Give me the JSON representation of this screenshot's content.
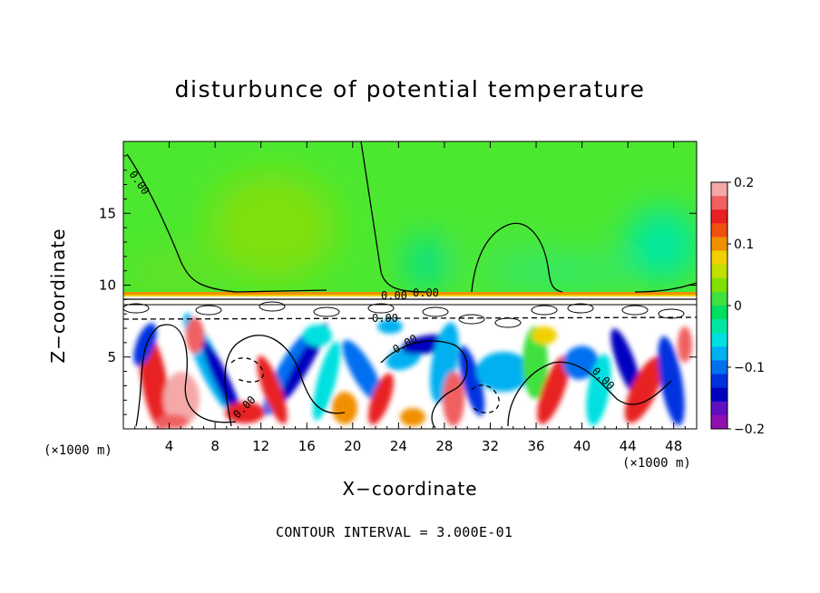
{
  "chart_data": {
    "type": "heatmap",
    "title": "disturbunce of potential temperature",
    "xlabel": "X−coordinate",
    "ylabel": "Z−coordinate",
    "x_unit_label": "(×1000 m)",
    "z_unit_label": "(×1000 m)",
    "xlim": [
      0,
      50
    ],
    "ylim": [
      0,
      20
    ],
    "x_ticks": [
      4,
      8,
      12,
      16,
      20,
      24,
      28,
      32,
      36,
      40,
      44,
      48
    ],
    "y_ticks": [
      5,
      10,
      15
    ],
    "colorbar": {
      "range": [
        -0.2,
        0.2
      ],
      "tick_values": [
        0.2,
        0.1,
        0,
        -0.1,
        -0.2
      ],
      "tick_labels": [
        "0.2",
        "0.1",
        "0",
        "−0.1",
        "−0.2"
      ],
      "colors_top_to_bottom": [
        "#f4a8a8",
        "#f06060",
        "#e82020",
        "#f05010",
        "#f09000",
        "#f0d000",
        "#c0e000",
        "#80e000",
        "#40e040",
        "#00e060",
        "#00e8a0",
        "#00e0e0",
        "#00b0f0",
        "#0070f0",
        "#0030e0",
        "#0000c0",
        "#6010c0",
        "#9010b0"
      ]
    },
    "contour_labels": [
      "0.00",
      "0.00",
      "0.00",
      "0.00",
      "0.00",
      "0.00",
      "0.00"
    ],
    "contour_interval_note": "CONTOUR INTERVAL = 3.000E-01",
    "grid": false
  }
}
